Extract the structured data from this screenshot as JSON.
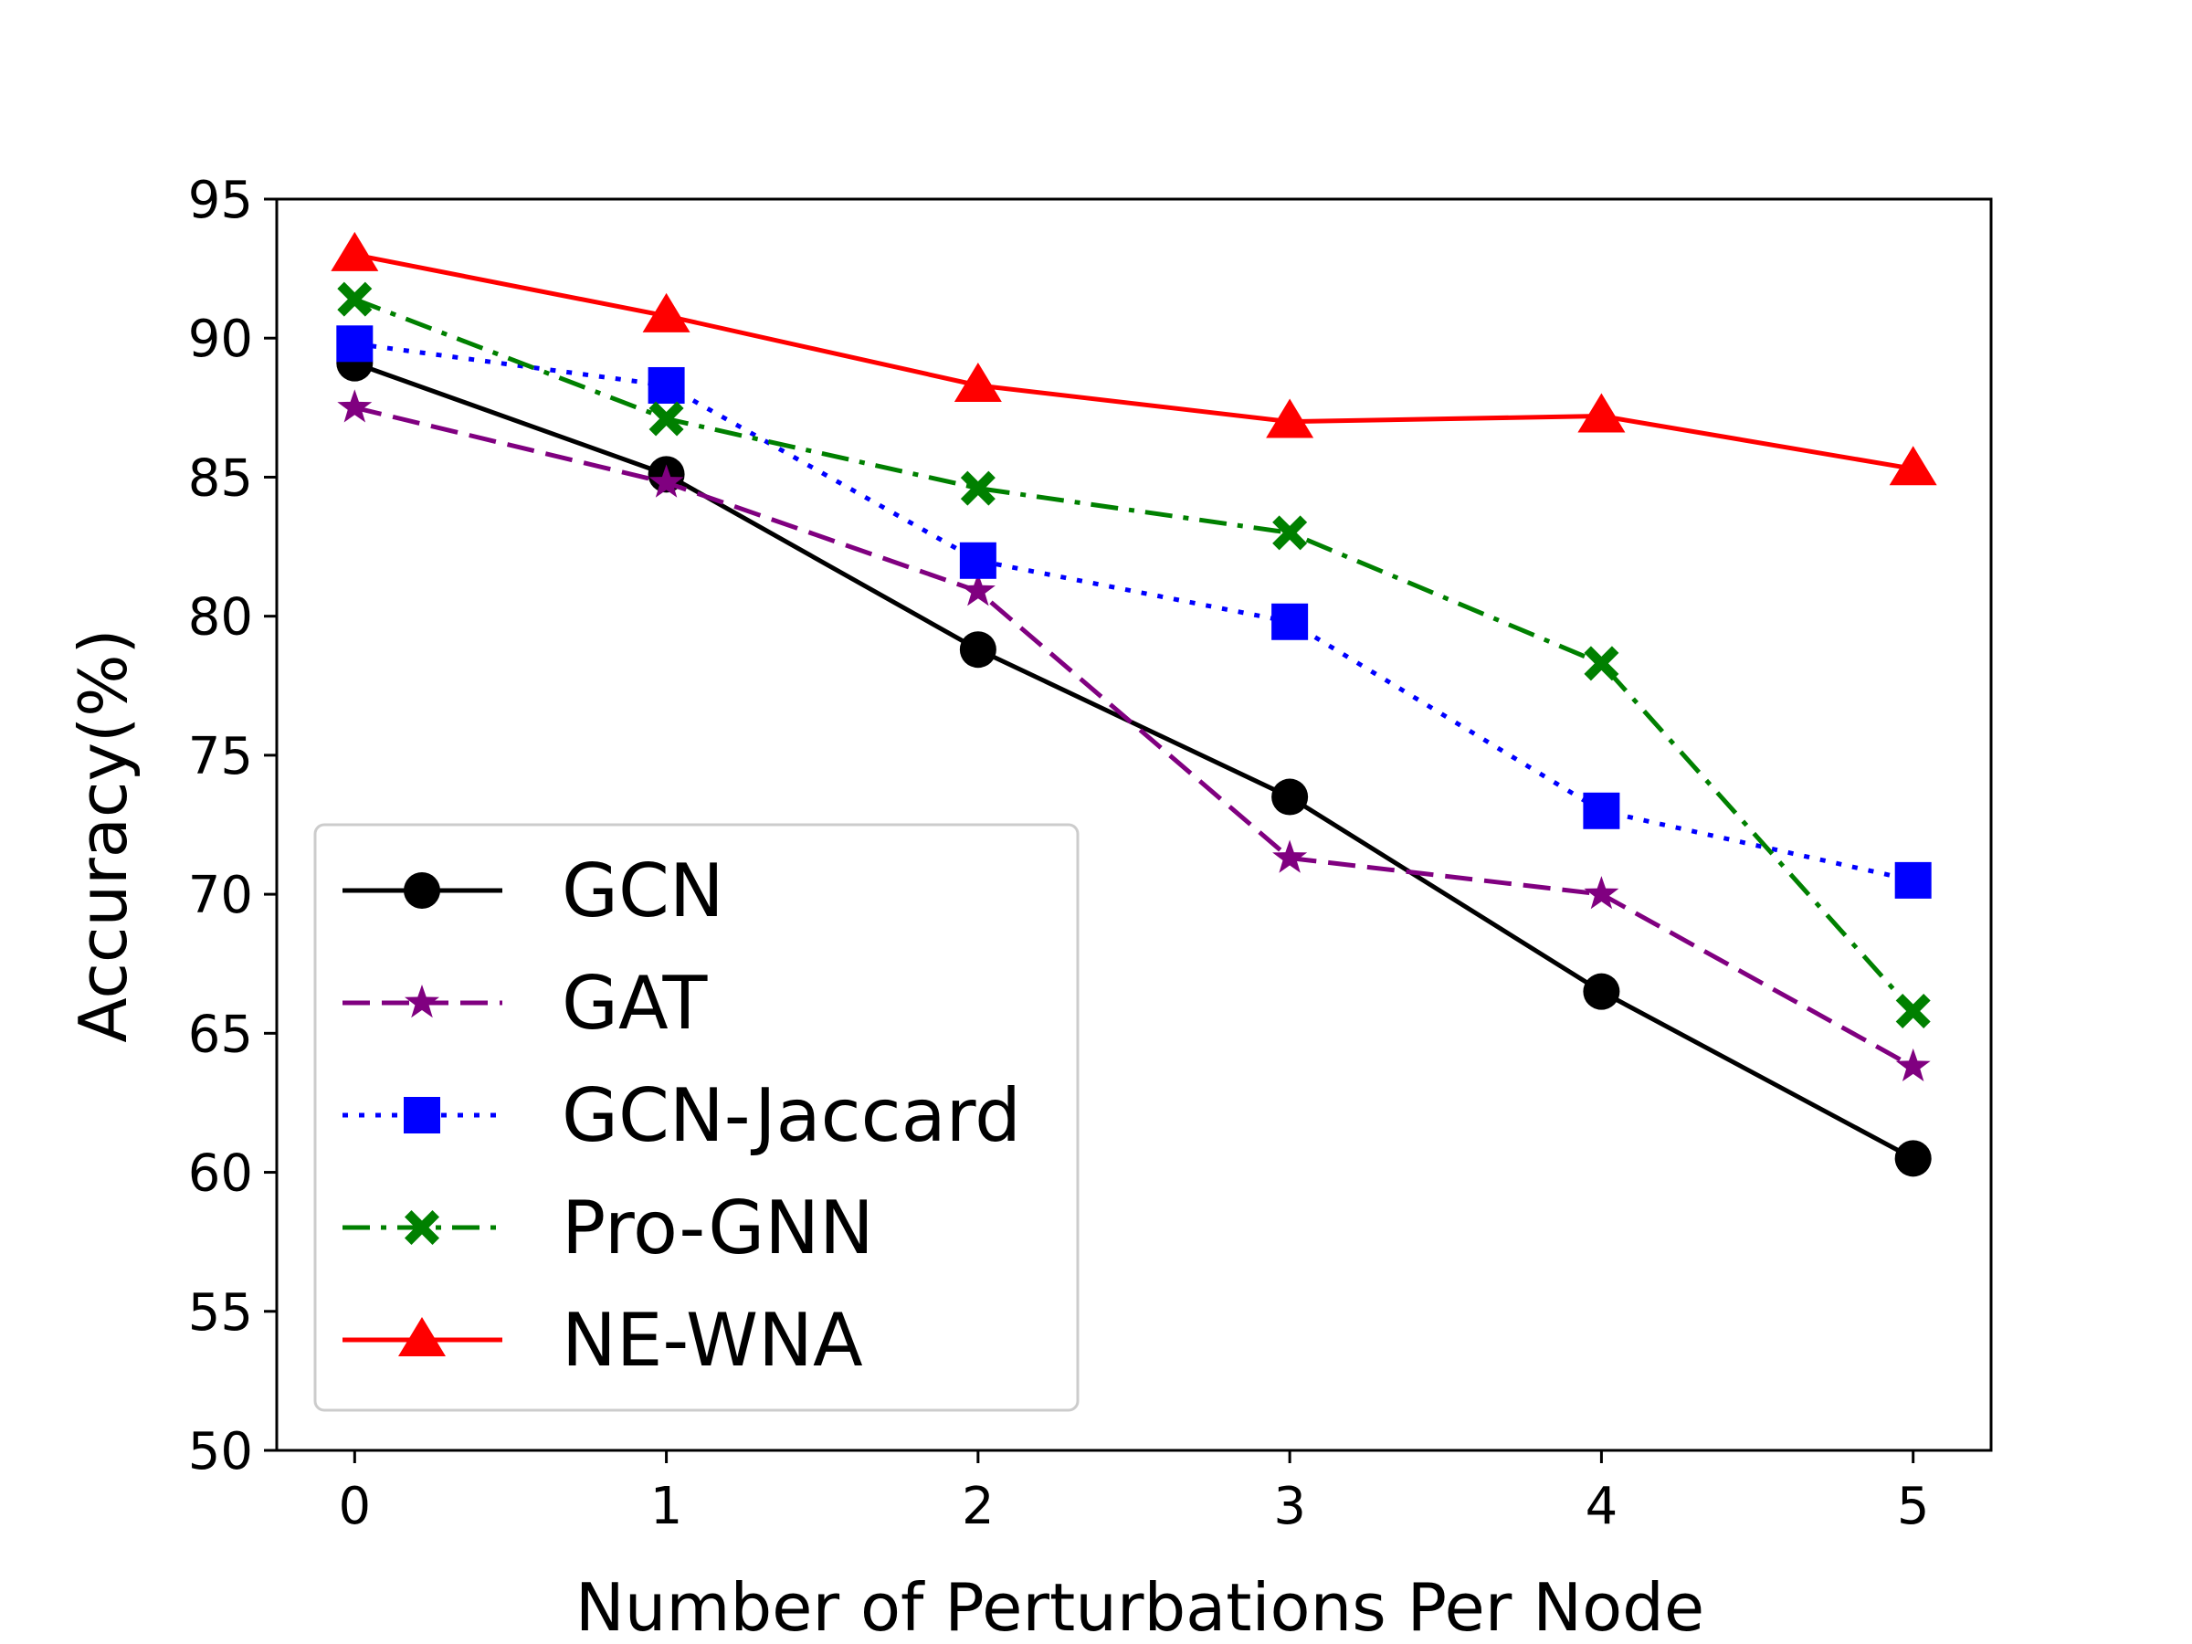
{
  "chart_data": {
    "type": "line",
    "x": [
      0,
      1,
      2,
      3,
      4,
      5
    ],
    "xlabel": "Number of Perturbations Per Node",
    "ylabel": "Accuracy(%)",
    "xlim": [
      -0.25,
      5.25
    ],
    "ylim": [
      50,
      95
    ],
    "xticks": [
      0,
      1,
      2,
      3,
      4,
      5
    ],
    "yticks": [
      50,
      55,
      60,
      65,
      70,
      75,
      80,
      85,
      90,
      95
    ],
    "grid": false,
    "legend_position": "lower-left",
    "series": [
      {
        "name": "GCN",
        "values": [
          89.1,
          85.1,
          78.8,
          73.5,
          66.5,
          60.5
        ],
        "color": "#000000",
        "linestyle": "solid",
        "marker": "circle"
      },
      {
        "name": "GAT",
        "values": [
          87.5,
          84.8,
          80.9,
          71.3,
          70.0,
          63.8
        ],
        "color": "#800080",
        "linestyle": "dashed",
        "marker": "star"
      },
      {
        "name": "GCN-Jaccard",
        "values": [
          89.8,
          88.3,
          82.0,
          79.8,
          73.0,
          70.5
        ],
        "color": "#0000ff",
        "linestyle": "dotted",
        "marker": "square"
      },
      {
        "name": "Pro-GNN",
        "values": [
          91.4,
          87.1,
          84.6,
          83.0,
          78.3,
          65.8
        ],
        "color": "#008000",
        "linestyle": "dashdot",
        "marker": "x"
      },
      {
        "name": "NE-WNA",
        "values": [
          93.0,
          90.8,
          88.3,
          87.0,
          87.2,
          85.3
        ],
        "color": "#ff0000",
        "linestyle": "solid",
        "marker": "triangle"
      }
    ]
  }
}
